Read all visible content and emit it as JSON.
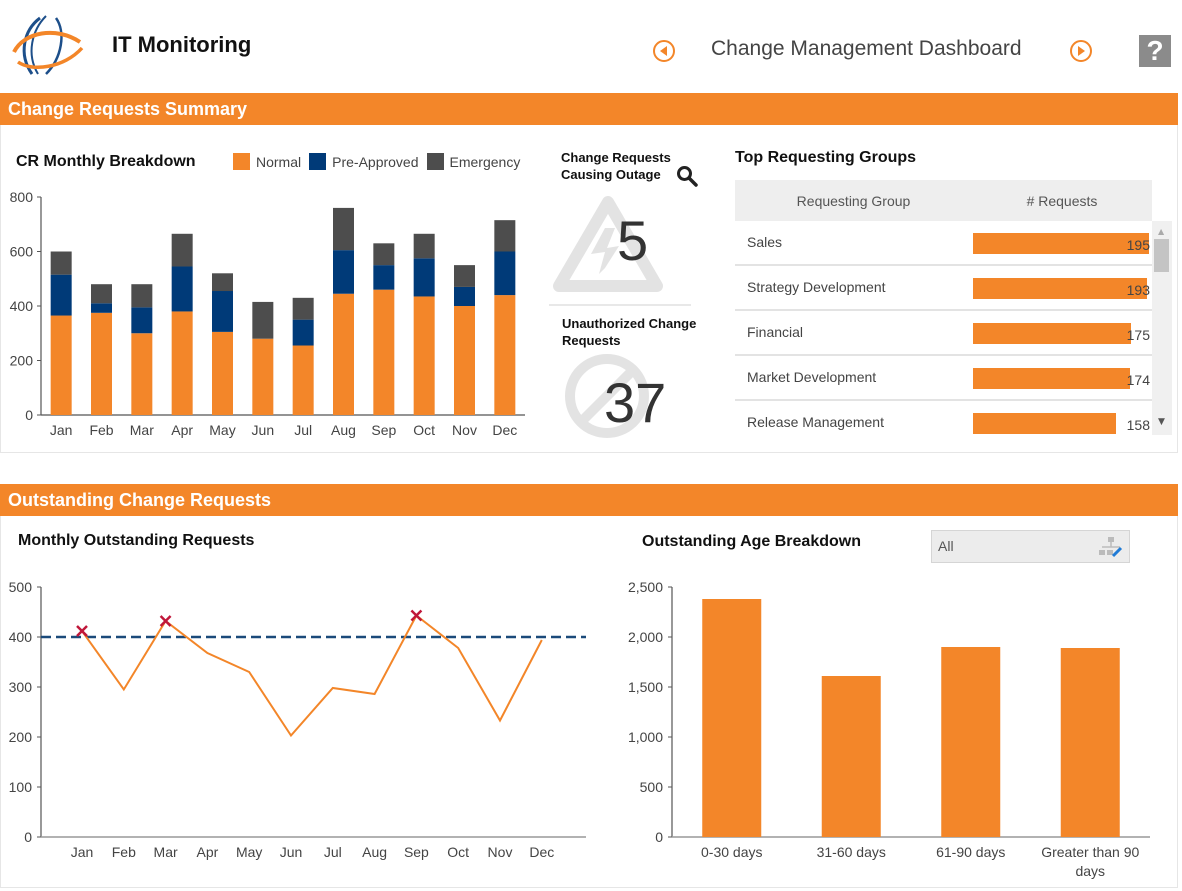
{
  "header": {
    "app_title": "IT Monitoring",
    "dashboard_title": "Change Management Dashboard",
    "help_label": "?"
  },
  "sections": {
    "summary": "Change Requests Summary",
    "outstanding": "Outstanding Change Requests"
  },
  "colors": {
    "accent": "#f38629",
    "normal": "#f38629",
    "pre_approved": "#003a78",
    "emergency": "#4d4d4d",
    "threshold": "#1b4a7a",
    "marker": "#c0173a"
  },
  "cr_breakdown": {
    "title": "CR Monthly Breakdown",
    "legend": [
      "Normal",
      "Pre-Approved",
      "Emergency"
    ]
  },
  "kpis": {
    "outage": {
      "title_line1": "Change Requests",
      "title_line2": "Causing Outage",
      "value": "5"
    },
    "unauthorized": {
      "title_line1": "Unauthorized Change",
      "title_line2": "Requests",
      "value": "37"
    }
  },
  "top_groups": {
    "title": "Top Requesting Groups",
    "columns": [
      "Requesting Group",
      "# Requests"
    ],
    "max": 195,
    "rows": [
      {
        "name": "Sales",
        "value": 195
      },
      {
        "name": "Strategy Development",
        "value": 193
      },
      {
        "name": "Financial",
        "value": 175
      },
      {
        "name": "Market Development",
        "value": 174
      },
      {
        "name": "Release Management",
        "value": 158
      }
    ]
  },
  "outstanding_monthly": {
    "title": "Monthly Outstanding Requests"
  },
  "age_breakdown": {
    "title": "Outstanding Age Breakdown",
    "filter_value": "All"
  },
  "chart_data": [
    {
      "type": "bar",
      "stacked": true,
      "title": "CR Monthly Breakdown",
      "categories": [
        "Jan",
        "Feb",
        "Mar",
        "Apr",
        "May",
        "Jun",
        "Jul",
        "Aug",
        "Sep",
        "Oct",
        "Nov",
        "Dec"
      ],
      "series": [
        {
          "name": "Normal",
          "values": [
            365,
            375,
            300,
            380,
            305,
            280,
            255,
            445,
            460,
            435,
            400,
            440
          ]
        },
        {
          "name": "Pre-Approved",
          "values": [
            150,
            35,
            95,
            165,
            150,
            0,
            95,
            160,
            90,
            140,
            70,
            160
          ]
        },
        {
          "name": "Emergency",
          "values": [
            85,
            70,
            85,
            120,
            65,
            135,
            80,
            155,
            80,
            90,
            80,
            115
          ]
        }
      ],
      "ylim": [
        0,
        800
      ],
      "yticks": [
        0,
        200,
        400,
        600,
        800
      ],
      "legend": "top"
    },
    {
      "type": "line",
      "title": "Monthly Outstanding Requests",
      "categories": [
        "Jan",
        "Feb",
        "Mar",
        "Apr",
        "May",
        "Jun",
        "Jul",
        "Aug",
        "Sep",
        "Oct",
        "Nov",
        "Dec"
      ],
      "series": [
        {
          "name": "Outstanding",
          "values": [
            412,
            295,
            432,
            368,
            330,
            203,
            298,
            286,
            443,
            378,
            233,
            394
          ]
        }
      ],
      "threshold": 400,
      "flagged": [
        "Jan",
        "Mar",
        "Sep"
      ],
      "ylim": [
        0,
        500
      ],
      "yticks": [
        0,
        100,
        200,
        300,
        400,
        500
      ]
    },
    {
      "type": "bar",
      "title": "Outstanding Age Breakdown",
      "categories": [
        "0-30 days",
        "31-60 days",
        "61-90 days",
        "Greater than 90 days"
      ],
      "category_lines": [
        [
          "0-30 days"
        ],
        [
          "31-60 days"
        ],
        [
          "61-90 days"
        ],
        [
          "Greater than 90",
          "days"
        ]
      ],
      "values": [
        2380,
        1610,
        1900,
        1890
      ],
      "ylim": [
        0,
        2500
      ],
      "yticks": [
        0,
        500,
        1000,
        1500,
        2000,
        2500
      ],
      "ytick_labels": [
        "0",
        "500",
        "1,000",
        "1,500",
        "2,000",
        "2,500"
      ]
    }
  ]
}
